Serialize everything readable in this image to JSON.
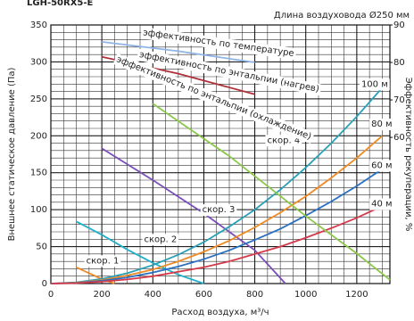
{
  "chart_data": {
    "type": "line",
    "title": "LGH-50RX5-E",
    "subtitle": "Длина воздуховода Ø250 мм",
    "x_label": "Расход воздуха, м³/ч",
    "y_label": "Внешнее статическое давление (Па)",
    "y2_label": "Эффективность рекуперации, %",
    "xlim": [
      0,
      1330
    ],
    "ylim": [
      0,
      350
    ],
    "y2lim": [
      21,
      90
    ],
    "xticks": [
      0,
      200,
      400,
      600,
      800,
      1000,
      1200
    ],
    "yticks": [
      0,
      50,
      100,
      150,
      200,
      250,
      300,
      350
    ],
    "y2ticks": [
      60,
      70,
      80,
      90
    ],
    "grid": true,
    "minor_grid": {
      "x": 50,
      "y": 10
    },
    "series": [
      {
        "color": "#f08a24",
        "x": [
          100,
          150,
          200,
          250
        ],
        "values": [
          22,
          14,
          6,
          0
        ]
      },
      {
        "color": "#1fb0c8",
        "x": [
          100,
          200,
          300,
          400,
          500,
          600
        ],
        "values": [
          84,
          66,
          46,
          28,
          12,
          0
        ]
      },
      {
        "color": "#7a4fb8",
        "x": [
          200,
          400,
          600,
          800,
          920
        ],
        "values": [
          183,
          140,
          95,
          45,
          0
        ]
      },
      {
        "color": "#2aa0b8",
        "x": [
          0,
          100,
          200,
          300,
          400,
          500,
          600,
          700,
          800,
          900,
          1000,
          1100,
          1200,
          1300
        ],
        "values": [
          0,
          1.6,
          6.3,
          14,
          25,
          39,
          56,
          77,
          100,
          127,
          157,
          190,
          226,
          265
        ]
      },
      {
        "color": "#f08a24",
        "x": [
          0,
          100,
          200,
          300,
          400,
          500,
          600,
          700,
          800,
          900,
          1000,
          1100,
          1200,
          1300
        ],
        "values": [
          0,
          1.2,
          4.7,
          11,
          19,
          30,
          43,
          58,
          76,
          96,
          118,
          143,
          170,
          200
        ]
      },
      {
        "color": "#2a6fc0",
        "x": [
          0,
          100,
          200,
          300,
          400,
          500,
          600,
          700,
          800,
          900,
          1000,
          1100,
          1200,
          1300
        ],
        "values": [
          0,
          0.9,
          3.7,
          8.3,
          15,
          23,
          33,
          45,
          59,
          74,
          92,
          111,
          132,
          155
        ]
      },
      {
        "color": "#d63a4a",
        "x": [
          0,
          100,
          200,
          300,
          400,
          500,
          600,
          700,
          800,
          900,
          1000,
          1100,
          1200,
          1300
        ],
        "values": [
          0,
          0.6,
          2.5,
          5.6,
          9.9,
          16,
          22,
          30,
          40,
          50,
          62,
          75,
          89,
          105
        ]
      },
      {
        "color": "#8fb4e8",
        "axis": "y2",
        "x": [
          200,
          500,
          800
        ],
        "values": [
          85.5,
          83,
          80
        ]
      },
      {
        "color": "#b0303a",
        "axis": "y2",
        "x": [
          200,
          500,
          800
        ],
        "values": [
          81.5,
          77,
          71.5
        ]
      },
      {
        "color": "#8cc84a",
        "axis": "y2",
        "x": [
          400,
          700,
          1000,
          1200,
          1330
        ],
        "values": [
          69,
          55,
          39,
          29,
          22
        ]
      }
    ],
    "annotations": [
      {
        "text": "скор. 1",
        "x": 203,
        "y": 31
      },
      {
        "text": "скор. 2",
        "x": 430,
        "y": 60
      },
      {
        "text": "скор. 3",
        "x": 658,
        "y": 100
      },
      {
        "text": "скор. 4",
        "x": 913,
        "y": 194
      },
      {
        "text": "100 м",
        "x": 1270,
        "y": 270
      },
      {
        "text": "80 м",
        "x": 1298,
        "y": 216
      },
      {
        "text": "60 м",
        "x": 1298,
        "y": 160
      },
      {
        "text": "40 м",
        "x": 1298,
        "y": 108
      },
      {
        "text": "эффективность по температуре",
        "x": 658,
        "y": 85.2,
        "axis": "y2"
      },
      {
        "text": "эффективность по энтальпии (нагрев)",
        "x": 700,
        "y": 77.5,
        "axis": "y2"
      },
      {
        "text": "эффективность по энтальпии (охлаждение)",
        "x": 640,
        "y": 70.5,
        "axis": "y2"
      }
    ]
  }
}
